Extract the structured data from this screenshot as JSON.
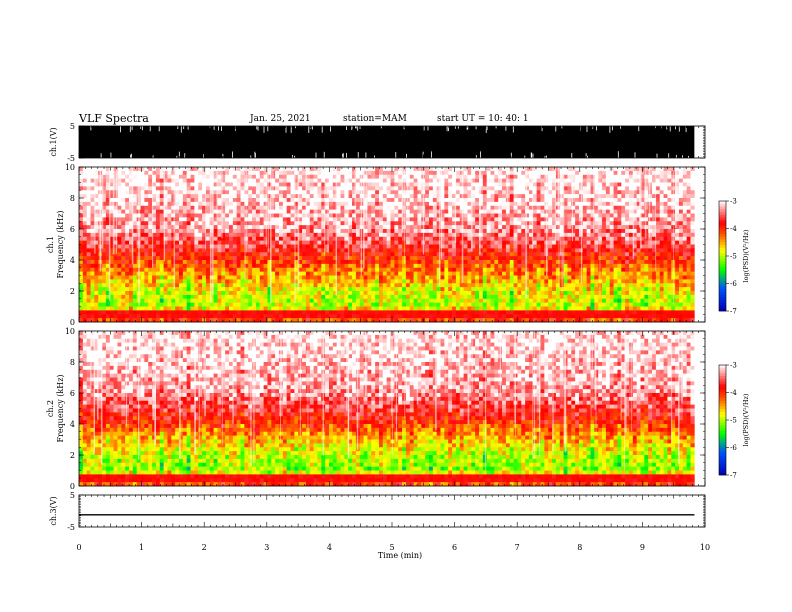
{
  "header": {
    "title": "VLF Spectra",
    "date": "Jan. 25, 2021",
    "station": "station=MAM",
    "start_ut": "start  UT  =   10: 40: 1"
  },
  "colors": {
    "spectrogram_high": "#ffffff",
    "spectrogram_mid": "#ff0000",
    "spectrogram_low": "#ffff00",
    "spectrogram_lower": "#00ff00",
    "spectrogram_min": "#0000ff",
    "waveform": "#000000"
  },
  "chart_data": [
    {
      "type": "line",
      "title": "",
      "xlabel": "",
      "ylabel": "ch.1(V)",
      "xlim": [
        0,
        10
      ],
      "ylim": [
        -5,
        5
      ],
      "yticks": [
        "5",
        "-5"
      ],
      "description_values": {
        "signal": "dense broadband waveform saturating ±5 V",
        "data_end_min": 9.83
      }
    },
    {
      "type": "heatmap",
      "xlabel": "",
      "ylabel": "Frequency (kHz)",
      "channel_label": "ch.1",
      "xlim": [
        0,
        10
      ],
      "ylim": [
        0,
        10
      ],
      "yticks": [
        "0",
        "2",
        "4",
        "6",
        "8",
        "10"
      ],
      "colorbar": {
        "label": "log(PSD)(V²/Hz)",
        "ticks": [
          "-3",
          "-4",
          "-5",
          "-6",
          "-7"
        ],
        "range": [
          -7,
          -3
        ]
      },
      "level_profile_by_freq_khz": [
        {
          "freq": 0.5,
          "log_psd": -4.0
        },
        {
          "freq": 1.0,
          "log_psd": -5.0
        },
        {
          "freq": 2.0,
          "log_psd": -4.8
        },
        {
          "freq": 3.0,
          "log_psd": -4.4
        },
        {
          "freq": 4.0,
          "log_psd": -4.0
        },
        {
          "freq": 5.0,
          "log_psd": -3.6
        },
        {
          "freq": 6.0,
          "log_psd": -3.3
        },
        {
          "freq": 8.0,
          "log_psd": -3.1
        },
        {
          "freq": 10.0,
          "log_psd": -3.0
        }
      ]
    },
    {
      "type": "heatmap",
      "xlabel": "",
      "ylabel": "Frequency (kHz)",
      "channel_label": "ch.2",
      "xlim": [
        0,
        10
      ],
      "ylim": [
        0,
        10
      ],
      "yticks": [
        "0",
        "2",
        "4",
        "6",
        "8",
        "10"
      ],
      "colorbar": {
        "label": "log(PSD)(V²/Hz)",
        "ticks": [
          "-3",
          "-4",
          "-5",
          "-6",
          "-7"
        ],
        "range": [
          -7,
          -3
        ]
      },
      "level_profile_by_freq_khz": [
        {
          "freq": 0.5,
          "log_psd": -4.0
        },
        {
          "freq": 1.0,
          "log_psd": -5.1
        },
        {
          "freq": 2.0,
          "log_psd": -4.9
        },
        {
          "freq": 3.0,
          "log_psd": -4.5
        },
        {
          "freq": 4.0,
          "log_psd": -4.0
        },
        {
          "freq": 5.0,
          "log_psd": -3.6
        },
        {
          "freq": 6.0,
          "log_psd": -3.3
        },
        {
          "freq": 8.0,
          "log_psd": -3.1
        },
        {
          "freq": 10.0,
          "log_psd": -3.0
        }
      ]
    },
    {
      "type": "line",
      "xlabel": "Time (min)",
      "ylabel": "ch.3(V)",
      "xlim": [
        0,
        10
      ],
      "ylim": [
        -5,
        5
      ],
      "yticks": [
        "5",
        "-5"
      ],
      "xticks": [
        "0",
        "1",
        "2",
        "3",
        "4",
        "5",
        "6",
        "7",
        "8",
        "9",
        "10"
      ],
      "series": [
        {
          "x": [
            0,
            9.83
          ],
          "values": [
            -1.2,
            -1.2
          ]
        }
      ]
    }
  ]
}
